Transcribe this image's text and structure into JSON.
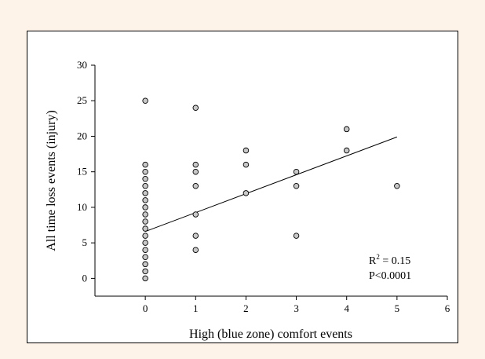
{
  "chart_data": {
    "type": "scatter",
    "xlabel": "High (blue zone) comfort events",
    "ylabel": "All time loss events (injury)",
    "xlim": [
      -1,
      6
    ],
    "ylim": [
      -2.5,
      30
    ],
    "xticks": [
      0,
      1,
      2,
      3,
      4,
      5,
      6
    ],
    "yticks": [
      0,
      5,
      10,
      15,
      20,
      25,
      30
    ],
    "grid": false,
    "points": [
      {
        "x": 0,
        "y": 0
      },
      {
        "x": 0,
        "y": 1
      },
      {
        "x": 0,
        "y": 2
      },
      {
        "x": 0,
        "y": 3
      },
      {
        "x": 0,
        "y": 4
      },
      {
        "x": 0,
        "y": 5
      },
      {
        "x": 0,
        "y": 6
      },
      {
        "x": 0,
        "y": 7
      },
      {
        "x": 0,
        "y": 8
      },
      {
        "x": 0,
        "y": 9
      },
      {
        "x": 0,
        "y": 10
      },
      {
        "x": 0,
        "y": 11
      },
      {
        "x": 0,
        "y": 12
      },
      {
        "x": 0,
        "y": 13
      },
      {
        "x": 0,
        "y": 14
      },
      {
        "x": 0,
        "y": 15
      },
      {
        "x": 0,
        "y": 16
      },
      {
        "x": 0,
        "y": 25
      },
      {
        "x": 1,
        "y": 4
      },
      {
        "x": 1,
        "y": 6
      },
      {
        "x": 1,
        "y": 9
      },
      {
        "x": 1,
        "y": 13
      },
      {
        "x": 1,
        "y": 15
      },
      {
        "x": 1,
        "y": 16
      },
      {
        "x": 1,
        "y": 24
      },
      {
        "x": 2,
        "y": 12
      },
      {
        "x": 2,
        "y": 16
      },
      {
        "x": 2,
        "y": 18
      },
      {
        "x": 3,
        "y": 6
      },
      {
        "x": 3,
        "y": 13
      },
      {
        "x": 3,
        "y": 15
      },
      {
        "x": 4,
        "y": 18
      },
      {
        "x": 4,
        "y": 21
      },
      {
        "x": 5,
        "y": 13
      }
    ],
    "regression_line": {
      "x": [
        0,
        5
      ],
      "y": [
        6.6,
        19.9
      ]
    },
    "annotation": {
      "r2_base": "R",
      "r2_sup": "2",
      "r2_rest": " = 0.15",
      "p": "P<0.0001"
    },
    "colors": {
      "marker_fill": "#c8c8c8",
      "marker_edge": "#000000",
      "line": "#000000",
      "background": "#fdf3e8"
    }
  }
}
